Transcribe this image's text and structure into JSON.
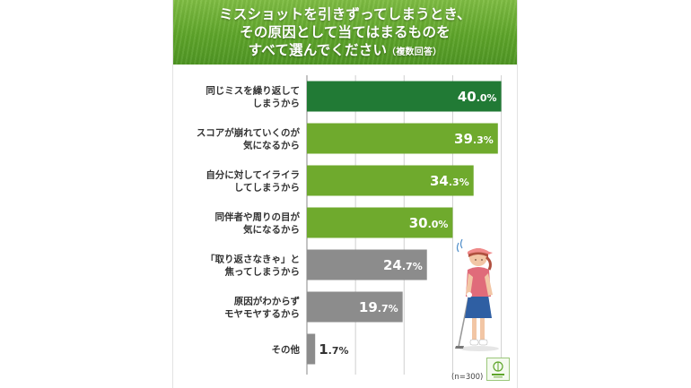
{
  "title": {
    "line1": "ミスショットを引きずってしまうとき、",
    "line2": "その原因として当てはまるものを",
    "line3": "すべて選んでください",
    "note": "（複数回答）"
  },
  "sample_size": "(n=300)",
  "colors": {
    "top": "#217a35",
    "green": "#6faa2d",
    "gray": "#8c8c8c",
    "grid": "#d0d0d0"
  },
  "chart_data": {
    "type": "bar",
    "orientation": "horizontal",
    "categories": [
      [
        "同じミスを繰り返して",
        "しまうから"
      ],
      [
        "スコアが崩れていくのが",
        "気になるから"
      ],
      [
        "自分に対してイライラ",
        "してしまうから"
      ],
      [
        "同伴者や周りの目が",
        "気になるから"
      ],
      [
        "「取り返さなきゃ」と",
        "焦ってしまうから"
      ],
      [
        "原因がわからず",
        "モヤモヤするから"
      ],
      [
        "その他"
      ]
    ],
    "values": [
      40.0,
      39.3,
      34.3,
      30.0,
      24.7,
      19.7,
      1.7
    ],
    "unit": "%",
    "xlim": [
      0,
      40
    ],
    "grid": true
  }
}
